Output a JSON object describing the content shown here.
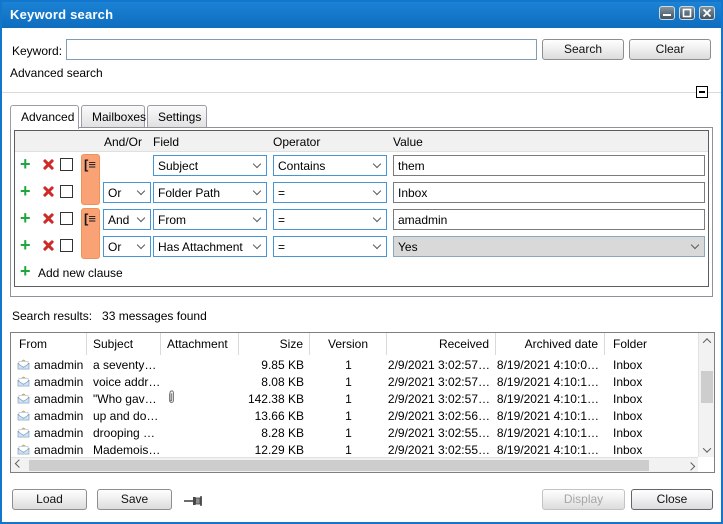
{
  "window": {
    "title": "Keyword search",
    "accent_color": "#1277cc"
  },
  "keyword_bar": {
    "label": "Keyword:",
    "input_value": "",
    "search_label": "Search",
    "clear_label": "Clear"
  },
  "advanced_search_label": "Advanced search",
  "tabs": [
    {
      "label": "Advanced",
      "active": true
    },
    {
      "label": "Mailboxes",
      "active": false
    },
    {
      "label": "Settings",
      "active": false
    }
  ],
  "clause_table": {
    "headers": {
      "and_or": "And/Or",
      "field": "Field",
      "operator": "Operator",
      "value": "Value"
    },
    "group_color": "#f8a276",
    "rows": [
      {
        "and_or": "",
        "field": "Subject",
        "operator": "Contains",
        "value": "them",
        "group_start": true
      },
      {
        "and_or": "Or",
        "field": "Folder Path",
        "operator": "=",
        "value": "Inbox",
        "group_start": false
      },
      {
        "and_or": "And",
        "field": "From",
        "operator": "=",
        "value": "amadmin",
        "group_start": true
      },
      {
        "and_or": "Or",
        "field": "Has Attachment",
        "operator": "=",
        "value": "Yes",
        "group_start": false
      }
    ],
    "add_clause_label": "Add new clause"
  },
  "results": {
    "summary_label": "Search results:",
    "summary_count": "33 messages found",
    "columns": {
      "from": "From",
      "subject": "Subject",
      "attachment": "Attachment",
      "size": "Size",
      "version": "Version",
      "received": "Received",
      "archived": "Archived date",
      "folder": "Folder"
    },
    "rows": [
      {
        "from": "amadmin",
        "subject": "a seventy…",
        "size": "9.85 KB",
        "version": "1",
        "received": "2/9/2021 3:02:57…",
        "archived": "8/19/2021 4:10:0…",
        "folder": "Inbox"
      },
      {
        "from": "amadmin",
        "subject": "voice addr…",
        "size": "8.08 KB",
        "version": "1",
        "received": "2/9/2021 3:02:57…",
        "archived": "8/19/2021 4:10:1…",
        "folder": "Inbox"
      },
      {
        "from": "amadmin",
        "subject": "\"Who gav…",
        "size": "142.38 KB",
        "version": "1",
        "received": "2/9/2021 3:02:57…",
        "archived": "8/19/2021 4:10:1…",
        "folder": "Inbox"
      },
      {
        "from": "amadmin",
        "subject": "up and do…",
        "size": "13.66 KB",
        "version": "1",
        "received": "2/9/2021 3:02:56…",
        "archived": "8/19/2021 4:10:1…",
        "folder": "Inbox"
      },
      {
        "from": "amadmin",
        "subject": "drooping …",
        "size": "8.28 KB",
        "version": "1",
        "received": "2/9/2021 3:02:55…",
        "archived": "8/19/2021 4:10:1…",
        "folder": "Inbox"
      },
      {
        "from": "amadmin",
        "subject": "Mademois…",
        "size": "12.29 KB",
        "version": "1",
        "received": "2/9/2021 3:02:55…",
        "archived": "8/19/2021 4:10:1…",
        "folder": "Inbox"
      }
    ]
  },
  "footer": {
    "load_label": "Load",
    "save_label": "Save",
    "display_label": "Display",
    "close_label": "Close"
  }
}
